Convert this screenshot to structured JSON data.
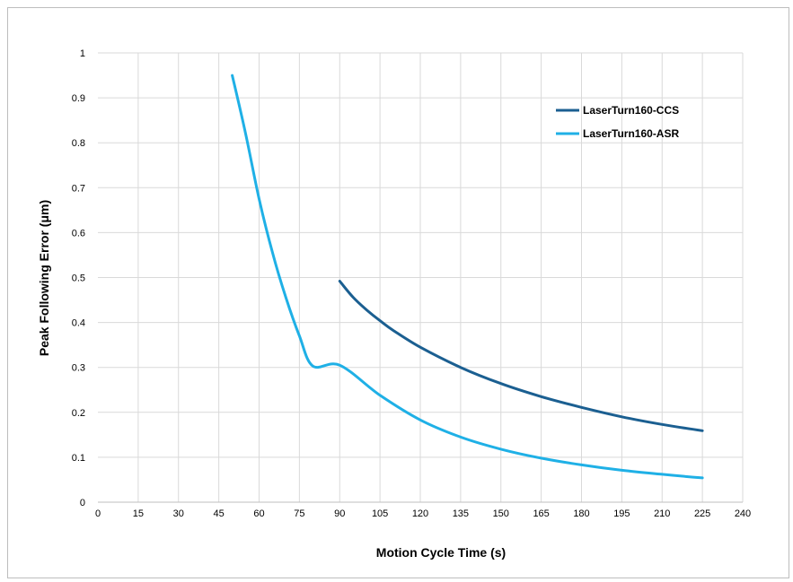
{
  "chart_data": {
    "type": "line",
    "title": "",
    "xlabel": "Motion Cycle Time (s)",
    "ylabel": "Peak Following Error (μm)",
    "xlim": [
      0,
      240
    ],
    "ylim": [
      0,
      1
    ],
    "xticks": [
      0,
      15,
      30,
      45,
      60,
      75,
      90,
      105,
      120,
      135,
      150,
      165,
      180,
      195,
      210,
      225,
      240
    ],
    "yticks": [
      0,
      0.1,
      0.2,
      0.3,
      0.4,
      0.5,
      0.6,
      0.7,
      0.8,
      0.9,
      1
    ],
    "ytick_labels": [
      "0",
      "0.1",
      "0.2",
      "0.3",
      "0.4",
      "0.5",
      "0.6",
      "0.7",
      "0.8",
      "0.9",
      "1"
    ],
    "grid": true,
    "legend_position": "top-right",
    "series": [
      {
        "name": "LaserTurn160-CCS",
        "color": "#1b5f91",
        "x": [
          90,
          95,
          100,
          105,
          110,
          120,
          135,
          150,
          165,
          180,
          195,
          210,
          225
        ],
        "y": [
          0.492,
          0.456,
          0.428,
          0.404,
          0.382,
          0.345,
          0.3,
          0.264,
          0.235,
          0.211,
          0.19,
          0.173,
          0.159
        ]
      },
      {
        "name": "LaserTurn160-ASR",
        "color": "#1fb0e6",
        "x": [
          50,
          55,
          60,
          65,
          70,
          75,
          80,
          90,
          105,
          120,
          135,
          150,
          165,
          180,
          195,
          210,
          225
        ],
        "y": [
          0.95,
          0.82,
          0.675,
          0.555,
          0.455,
          0.37,
          0.303,
          0.305,
          0.238,
          0.183,
          0.145,
          0.118,
          0.098,
          0.083,
          0.071,
          0.062,
          0.054
        ]
      }
    ]
  }
}
